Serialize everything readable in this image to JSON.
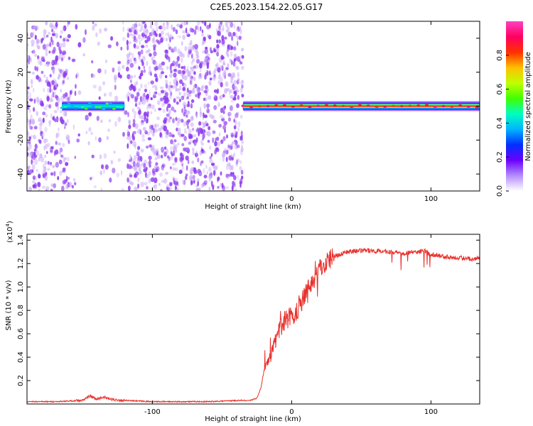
{
  "title": "C2E5.2023.154.22.05.G17",
  "colors": {
    "signal": "#e8302b",
    "background_dots": "#8f3cf0",
    "axes": "#000000"
  },
  "chart_data": [
    {
      "type": "heatmap",
      "xlabel": "Height of straight line (km)",
      "ylabel": "Frequency (Hz)",
      "xlim": [
        -190,
        135
      ],
      "ylim": [
        -50,
        50
      ],
      "xticks": [
        {
          "v": -100,
          "label": "-100"
        },
        {
          "v": 0,
          "label": "0"
        },
        {
          "v": 100,
          "label": "100"
        }
      ],
      "yticks": [
        {
          "v": -40,
          "label": "-40"
        },
        {
          "v": -20,
          "label": "-20"
        },
        {
          "v": 0,
          "label": "0"
        },
        {
          "v": 20,
          "label": "20"
        },
        {
          "v": 40,
          "label": "40"
        }
      ],
      "colorbar": {
        "label": "Normalized spectral amplitude",
        "range": [
          0,
          1
        ],
        "ticks": [
          {
            "v": 0.0,
            "label": "0.0"
          },
          {
            "v": 0.2,
            "label": "0.2"
          },
          {
            "v": 0.4,
            "label": "0.4"
          },
          {
            "v": 0.6,
            "label": "0.6"
          },
          {
            "v": 0.8,
            "label": "0.8"
          }
        ],
        "colormap": [
          "#ffffff",
          "#b48cff",
          "#6a00ff",
          "#0030ff",
          "#00b4ff",
          "#00ffc0",
          "#40ff00",
          "#c0ff00",
          "#ffc000",
          "#ff3000",
          "#ff0060",
          "#ff40c0"
        ]
      },
      "noise_regions": [
        {
          "x": [
            -190,
            -160
          ],
          "density": 0.55
        },
        {
          "x": [
            -160,
            -118
          ],
          "density": 0.12
        },
        {
          "x": [
            -118,
            -35
          ],
          "density": 0.6
        }
      ],
      "signal_segments": [
        {
          "x": [
            -165,
            -120
          ],
          "freq": 0,
          "amplitude": 0.45
        },
        {
          "x": [
            -35,
            135
          ],
          "freq": 0,
          "amplitude": 0.85
        }
      ]
    },
    {
      "type": "line",
      "xlabel": "Height of straight line (km)",
      "ylabel": "SNR (10 * v/v)",
      "scale_label": "(x10",
      "scale_exp": "4",
      "y_multiplier": 10000,
      "xlim": [
        -190,
        135
      ],
      "ylim": [
        0,
        1.45
      ],
      "xticks": [
        {
          "v": -100,
          "label": "-100"
        },
        {
          "v": 0,
          "label": "0"
        },
        {
          "v": 100,
          "label": "100"
        }
      ],
      "yticks": [
        {
          "v": 0.2,
          "label": "0.2"
        },
        {
          "v": 0.4,
          "label": "0.4"
        },
        {
          "v": 0.6,
          "label": "0.6"
        },
        {
          "v": 0.8,
          "label": "0.8"
        },
        {
          "v": 1.0,
          "label": "1.0"
        },
        {
          "v": 1.2,
          "label": "1.2"
        },
        {
          "v": 1.4,
          "label": "1.4"
        }
      ],
      "series": [
        {
          "color": "#e8302b",
          "x": [
            -190,
            -170,
            -150,
            -145,
            -140,
            -135,
            -130,
            -120,
            -100,
            -80,
            -60,
            -40,
            -30,
            -25,
            -22,
            -20,
            -15,
            -10,
            -5,
            0,
            5,
            10,
            15,
            20,
            25,
            30,
            40,
            50,
            60,
            70,
            80,
            90,
            95,
            100,
            110,
            120,
            130,
            135
          ],
          "y": [
            0.02,
            0.02,
            0.03,
            0.07,
            0.04,
            0.06,
            0.04,
            0.03,
            0.02,
            0.02,
            0.02,
            0.03,
            0.03,
            0.05,
            0.14,
            0.28,
            0.42,
            0.6,
            0.72,
            0.75,
            0.82,
            0.95,
            1.05,
            1.15,
            1.22,
            1.26,
            1.3,
            1.31,
            1.31,
            1.3,
            1.29,
            1.3,
            1.31,
            1.28,
            1.26,
            1.25,
            1.24,
            1.25
          ]
        }
      ]
    }
  ]
}
